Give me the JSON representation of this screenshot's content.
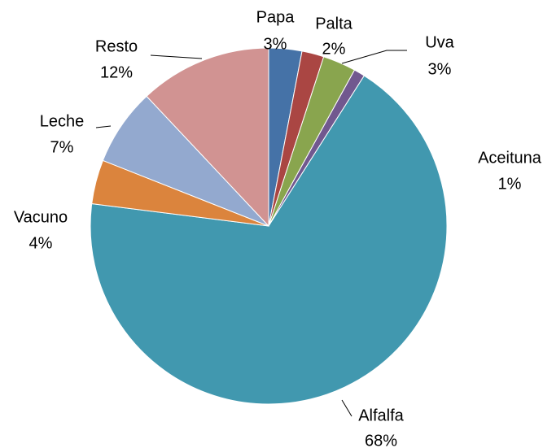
{
  "chart_data": {
    "type": "pie",
    "categories": [
      "Papa",
      "Palta",
      "Uva",
      "Aceituna",
      "Alfalfa",
      "Vacuno",
      "Leche",
      "Resto"
    ],
    "values": [
      3,
      2,
      3,
      1,
      68,
      4,
      7,
      12
    ],
    "value_labels": [
      "3%",
      "2%",
      "3%",
      "1%",
      "68%",
      "4%",
      "7%",
      "12%"
    ],
    "colors": [
      "#4572a7",
      "#aa4643",
      "#89a54e",
      "#71588f",
      "#4198af",
      "#db843d",
      "#93a9cf",
      "#d19392"
    ]
  }
}
